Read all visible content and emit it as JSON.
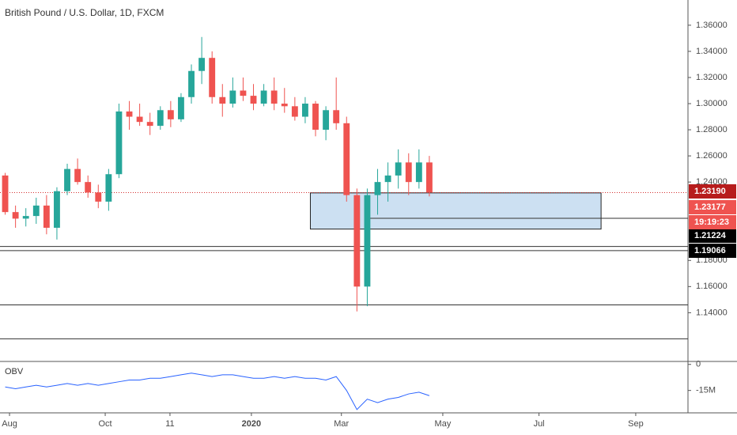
{
  "chart_data": {
    "type": "candlestick",
    "title": "British Pound / U.S. Dollar, 1D, FXCM",
    "x": [
      0,
      1,
      2,
      3,
      4,
      5,
      6,
      7,
      8,
      9,
      10,
      11,
      12,
      13,
      14,
      15,
      16,
      17,
      18,
      19,
      20,
      21,
      22,
      23,
      24,
      25,
      26,
      27,
      28,
      29,
      30,
      31,
      32,
      33,
      34,
      35,
      36,
      37,
      38,
      39,
      40,
      41
    ],
    "open": [
      1.245,
      1.217,
      1.212,
      1.214,
      1.222,
      1.205,
      1.233,
      1.25,
      1.24,
      1.232,
      1.225,
      1.246,
      1.294,
      1.29,
      1.286,
      1.283,
      1.295,
      1.288,
      1.305,
      1.325,
      1.335,
      1.305,
      1.3,
      1.31,
      1.306,
      1.3,
      1.31,
      1.3,
      1.298,
      1.29,
      1.3,
      1.28,
      1.295,
      1.285,
      1.23,
      1.16,
      1.23,
      1.24,
      1.245,
      1.255,
      1.24,
      1.255
    ],
    "high": [
      1.247,
      1.222,
      1.22,
      1.228,
      1.23,
      1.236,
      1.254,
      1.258,
      1.245,
      1.238,
      1.25,
      1.3,
      1.302,
      1.3,
      1.293,
      1.298,
      1.302,
      1.308,
      1.33,
      1.351,
      1.34,
      1.315,
      1.32,
      1.32,
      1.315,
      1.315,
      1.32,
      1.312,
      1.305,
      1.305,
      1.302,
      1.298,
      1.32,
      1.29,
      1.235,
      1.235,
      1.25,
      1.255,
      1.265,
      1.262,
      1.265,
      1.26
    ],
    "low": [
      1.215,
      1.205,
      1.206,
      1.208,
      1.2,
      1.196,
      1.23,
      1.238,
      1.228,
      1.22,
      1.218,
      1.243,
      1.28,
      1.283,
      1.276,
      1.28,
      1.282,
      1.286,
      1.3,
      1.315,
      1.3,
      1.29,
      1.297,
      1.302,
      1.295,
      1.298,
      1.295,
      1.293,
      1.287,
      1.285,
      1.275,
      1.272,
      1.28,
      1.225,
      1.141,
      1.145,
      1.215,
      1.225,
      1.235,
      1.23,
      1.235,
      1.229
    ],
    "close": [
      1.217,
      1.212,
      1.214,
      1.222,
      1.205,
      1.233,
      1.25,
      1.24,
      1.232,
      1.225,
      1.246,
      1.294,
      1.29,
      1.286,
      1.283,
      1.295,
      1.288,
      1.305,
      1.325,
      1.335,
      1.305,
      1.3,
      1.31,
      1.306,
      1.3,
      1.31,
      1.3,
      1.298,
      1.29,
      1.3,
      1.28,
      1.295,
      1.285,
      1.23,
      1.16,
      1.23,
      1.24,
      1.245,
      1.255,
      1.24,
      1.255,
      1.232
    ],
    "up_color": "#26a69a",
    "down_color": "#ef5350",
    "xlim": [
      -0.5,
      66
    ],
    "xticks": [
      {
        "value": 0.42,
        "label": "Aug"
      },
      {
        "value": 9.67,
        "label": "Oct"
      },
      {
        "value": 15.93,
        "label": "11"
      },
      {
        "value": 23.8,
        "label": "2020"
      },
      {
        "value": 32.5,
        "label": "Mar"
      },
      {
        "value": 42.3,
        "label": "May"
      },
      {
        "value": 51.6,
        "label": "Jul"
      },
      {
        "value": 60.95,
        "label": "Sep"
      }
    ],
    "ylim": [
      1.1027,
      1.3793
    ],
    "yticks": [
      {
        "value": 1.36,
        "label": "1.36000"
      },
      {
        "value": 1.34,
        "label": "1.34000"
      },
      {
        "value": 1.32,
        "label": "1.32000"
      },
      {
        "value": 1.3,
        "label": "1.30000"
      },
      {
        "value": 1.28,
        "label": "1.28000"
      },
      {
        "value": 1.26,
        "label": "1.26000"
      },
      {
        "value": 1.24,
        "label": "1.24000"
      },
      {
        "value": 1.18,
        "label": "1.18000"
      },
      {
        "value": 1.16,
        "label": "1.16000"
      },
      {
        "value": 1.14,
        "label": "1.14000"
      }
    ],
    "hlines": [
      {
        "value": 1.21224,
        "x0": 35
      },
      {
        "value": 1.19066,
        "x0": -0.5
      },
      {
        "value": 1.1875,
        "x0": -0.5
      },
      {
        "value": 1.146,
        "x0": -0.5
      },
      {
        "value": 1.12,
        "x0": -0.5
      }
    ],
    "last_price": 1.2319,
    "box": {
      "x": [
        29.5,
        57.6
      ],
      "y": [
        1.204,
        1.2317
      ],
      "color": "#bbd6ee"
    },
    "price_labels": [
      {
        "value": 1.2319,
        "label": "1.23190",
        "color": "#b71c1c"
      },
      {
        "value": 1.23177,
        "label": "1.23177",
        "color": "#ef5350"
      },
      {
        "value": 1.21224,
        "label": "1.21224",
        "color": "#000000"
      },
      {
        "value": 1.19066,
        "label": "1.19066",
        "color": "#000000"
      }
    ],
    "countdown": "19:19:23",
    "obv": {
      "title": "OBV",
      "color": "#2962ff",
      "values": [
        -13,
        -14,
        -13,
        -12,
        -13,
        -12,
        -11,
        -12,
        -11,
        -12,
        -11,
        -10,
        -9,
        -9,
        -8,
        -8,
        -7,
        -6,
        -5,
        -6,
        -7,
        -6,
        -6,
        -7,
        -8,
        -8,
        -7,
        -8,
        -7,
        -8,
        -8,
        -9,
        -7,
        -15,
        -26,
        -20,
        -22,
        -20,
        -19,
        -17,
        -16,
        -18
      ],
      "ylim": [
        -27.9,
        1.7
      ],
      "yticks": [
        0,
        {
          "value": -15,
          "label": "-15M"
        }
      ]
    }
  }
}
